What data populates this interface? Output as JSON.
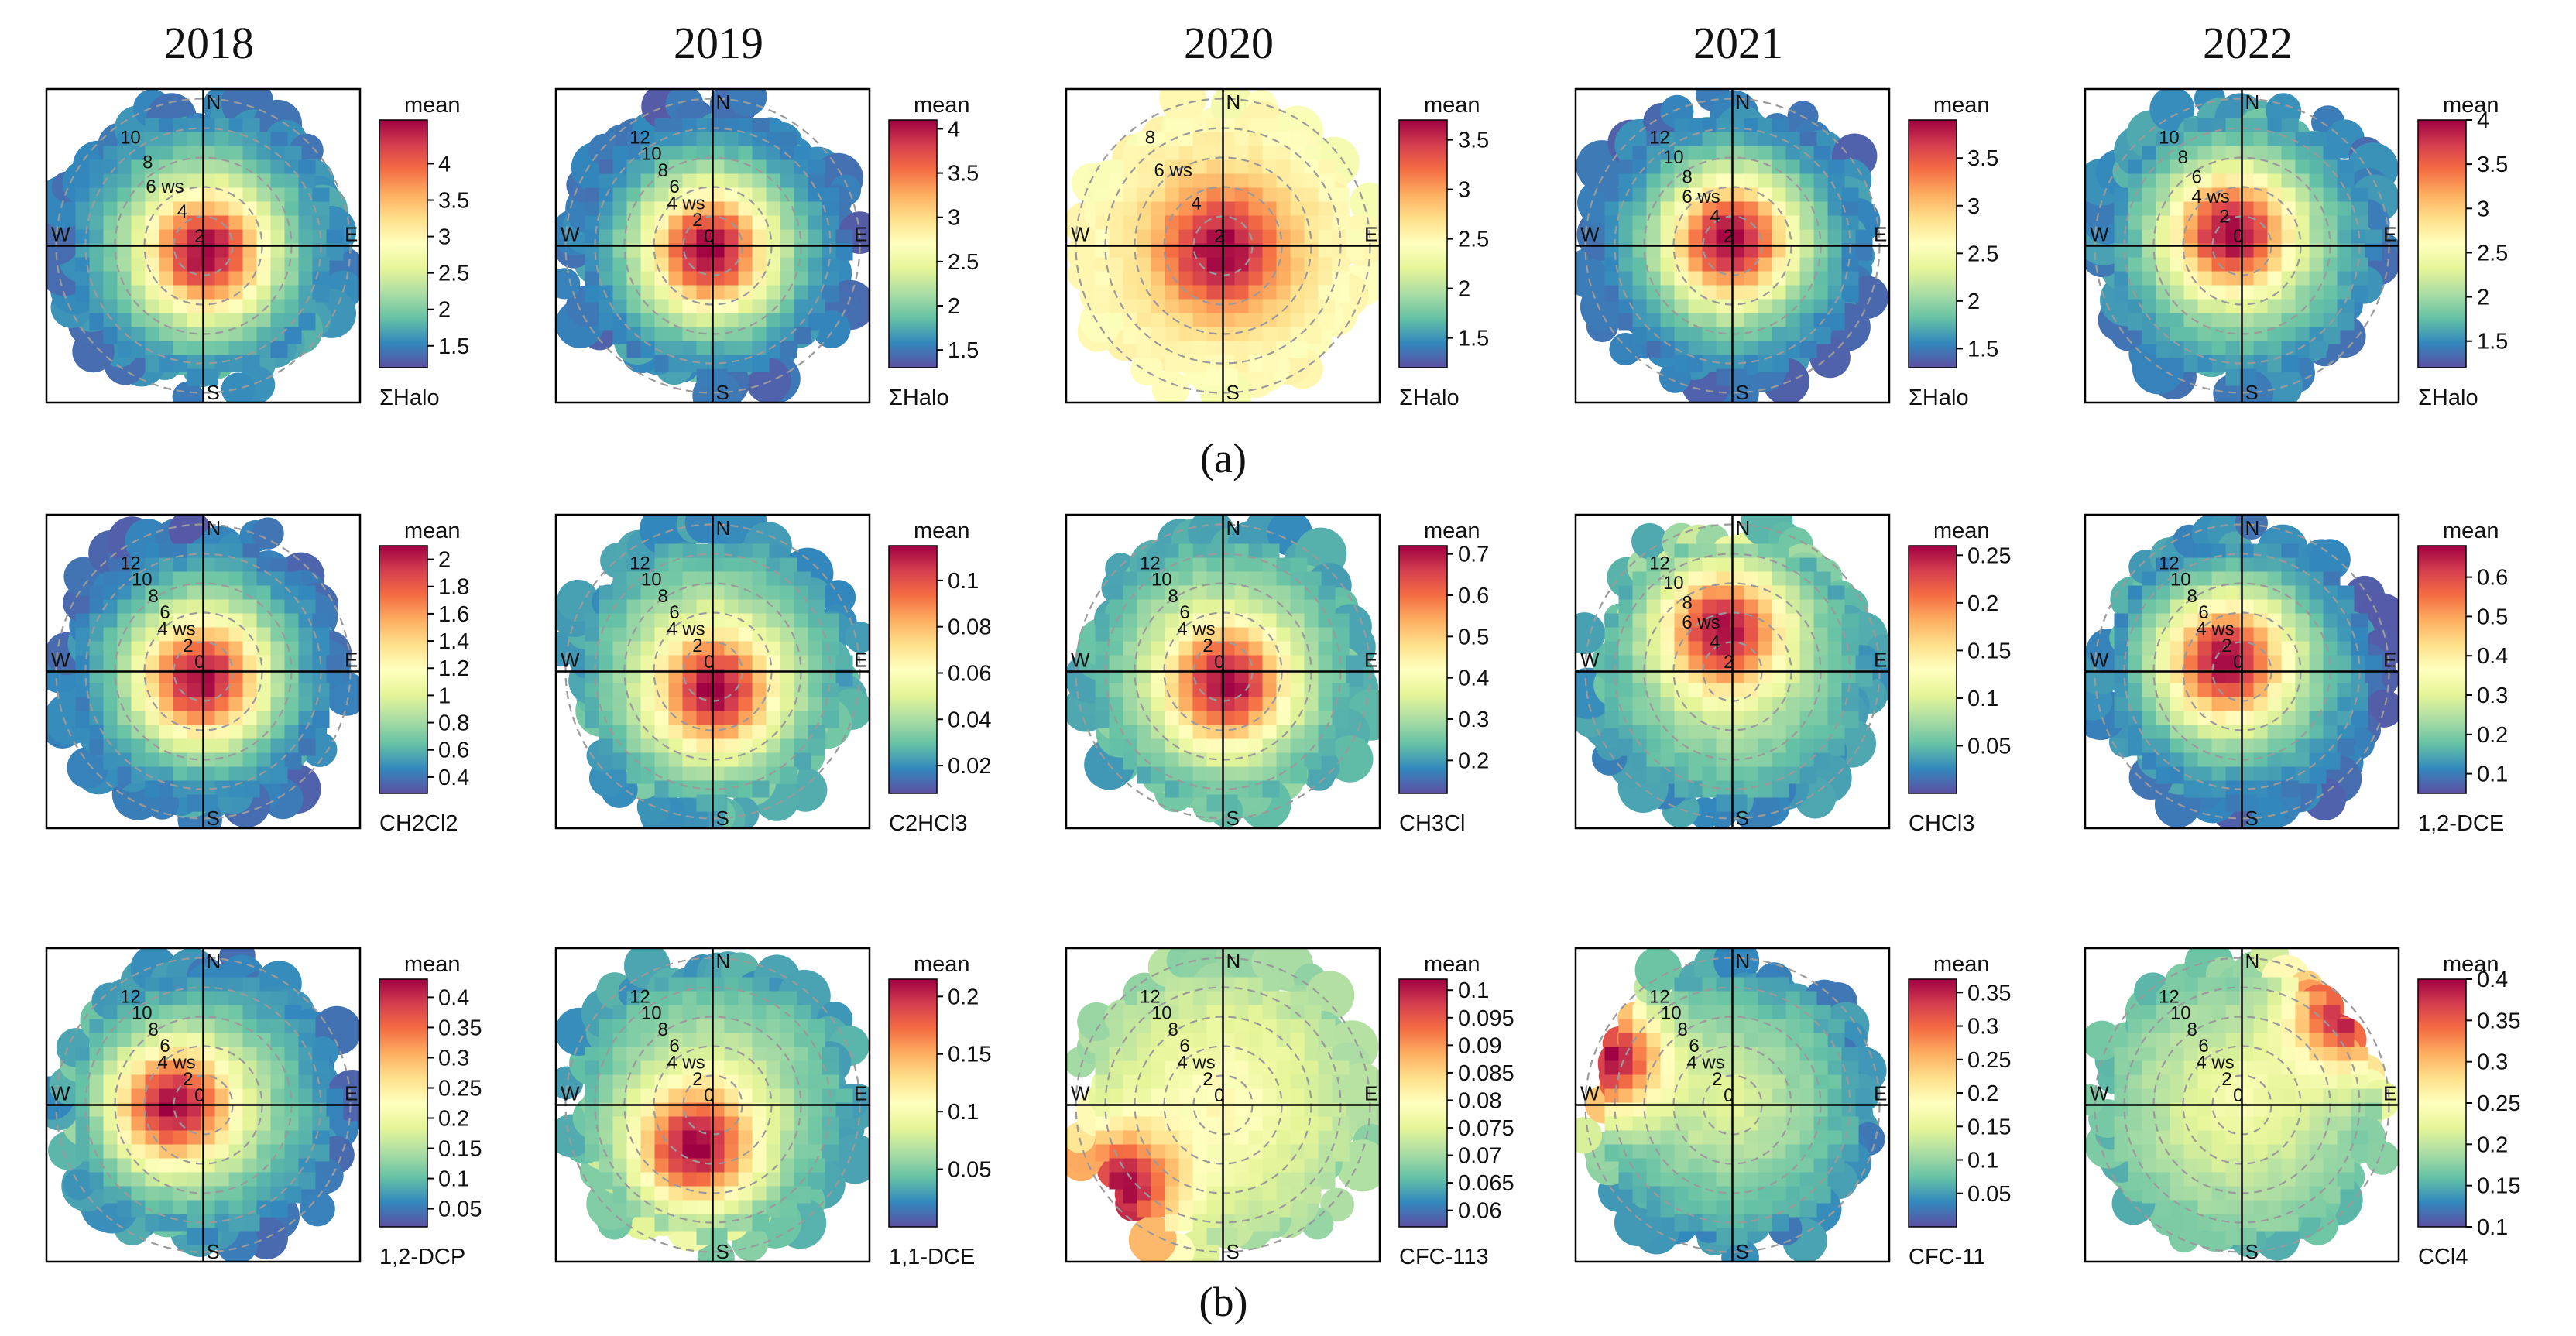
{
  "figure": {
    "years": [
      "2018",
      "2019",
      "2020",
      "2021",
      "2022"
    ],
    "panel_labels": [
      "(a)",
      "(b)"
    ]
  },
  "colors": {
    "scale": [
      "#5e4fa2",
      "#3288bd",
      "#66c2a5",
      "#abdda4",
      "#e6f598",
      "#ffffbf",
      "#fee08b",
      "#fdae61",
      "#f46d43",
      "#d53e4f",
      "#9e0142"
    ]
  },
  "chart_data": [
    {
      "type": "heatmap",
      "title": "2018",
      "compound": "ΣHalo",
      "legend_title": "mean",
      "ticks": [
        "1.5",
        "2",
        "2.5",
        "3",
        "3.5",
        "4"
      ],
      "tick_values": [
        1.5,
        2,
        2.5,
        3,
        3.5,
        4
      ],
      "range": [
        1.2,
        4.6
      ],
      "ring_labels": [
        "2",
        "4",
        "6 ws",
        "8",
        "10"
      ],
      "cardinals": [
        "N",
        "E",
        "S",
        "W"
      ],
      "hotspot": {
        "dir": 150,
        "ws": 0.8,
        "value": 4.6
      },
      "peripheral_value": 1.4
    },
    {
      "type": "heatmap",
      "title": "2019",
      "compound": "ΣHalo",
      "legend_title": "mean",
      "ticks": [
        "1.5",
        "2",
        "2.5",
        "3",
        "3.5",
        "4"
      ],
      "tick_values": [
        1.5,
        2,
        2.5,
        3,
        3.5,
        4
      ],
      "range": [
        1.3,
        4.1
      ],
      "ring_labels": [
        "0",
        "2",
        "4 ws",
        "6",
        "8",
        "10",
        "12"
      ],
      "cardinals": [
        "N",
        "E",
        "S",
        "W"
      ],
      "hotspot": {
        "dir": 200,
        "ws": 0.6,
        "value": 4.1
      },
      "peripheral_value": 1.4
    },
    {
      "type": "heatmap",
      "title": "2020",
      "compound": "ΣHalo",
      "legend_title": "mean",
      "ticks": [
        "1.5",
        "2",
        "2.5",
        "3",
        "3.5"
      ],
      "tick_values": [
        1.5,
        2,
        2.5,
        3,
        3.5
      ],
      "range": [
        1.2,
        3.7
      ],
      "ring_labels": [
        "2",
        "4",
        "6 ws",
        "8"
      ],
      "cardinals": [
        "N",
        "E",
        "S",
        "W"
      ],
      "hotspot": {
        "dir": 180,
        "ws": 0.6,
        "value": 3.7
      },
      "peripheral_value": 2.4
    },
    {
      "type": "heatmap",
      "title": "2021",
      "compound": "ΣHalo",
      "legend_title": "mean",
      "ticks": [
        "1.5",
        "2",
        "2.5",
        "3",
        "3.5"
      ],
      "tick_values": [
        1.5,
        2,
        2.5,
        3,
        3.5
      ],
      "range": [
        1.3,
        3.9
      ],
      "ring_labels": [
        "2",
        "4",
        "6 ws",
        "8",
        "10",
        "12"
      ],
      "cardinals": [
        "N",
        "E",
        "S",
        "W"
      ],
      "hotspot": {
        "dir": 0,
        "ws": 0.3,
        "value": 3.9
      },
      "peripheral_value": 1.4
    },
    {
      "type": "heatmap",
      "title": "2022",
      "compound": "ΣHalo",
      "legend_title": "mean",
      "ticks": [
        "1.5",
        "2",
        "2.5",
        "3",
        "3.5",
        "4"
      ],
      "tick_values": [
        1.5,
        2,
        2.5,
        3,
        3.5,
        4
      ],
      "range": [
        1.2,
        4.0
      ],
      "ring_labels": [
        "0",
        "2",
        "4 ws",
        "6",
        "8",
        "10"
      ],
      "cardinals": [
        "N",
        "E",
        "S",
        "W"
      ],
      "hotspot": {
        "dir": 320,
        "ws": 1.2,
        "value": 4.0
      },
      "peripheral_value": 1.4
    },
    {
      "type": "heatmap",
      "title": "2018",
      "compound": "CH2Cl2",
      "legend_title": "mean",
      "ticks": [
        "0.4",
        "0.6",
        "0.8",
        "1",
        "1.2",
        "1.4",
        "1.6",
        "1.8",
        "2"
      ],
      "tick_values": [
        0.4,
        0.6,
        0.8,
        1,
        1.2,
        1.4,
        1.6,
        1.8,
        2
      ],
      "range": [
        0.28,
        2.1
      ],
      "ring_labels": [
        "0",
        "2",
        "4 ws",
        "6",
        "8",
        "10",
        "12"
      ],
      "cardinals": [
        "N",
        "E",
        "S",
        "W"
      ],
      "hotspot": {
        "dir": 180,
        "ws": 0.8,
        "value": 2.1
      },
      "peripheral_value": 0.35
    },
    {
      "type": "heatmap",
      "title": "2019",
      "compound": "C2HCl3",
      "legend_title": "mean",
      "ticks": [
        "0.02",
        "0.04",
        "0.06",
        "0.08",
        "0.1"
      ],
      "tick_values": [
        0.02,
        0.04,
        0.06,
        0.08,
        0.1
      ],
      "range": [
        0.008,
        0.115
      ],
      "ring_labels": [
        "0",
        "2",
        "4 ws",
        "6",
        "8",
        "10",
        "12"
      ],
      "cardinals": [
        "N",
        "E",
        "S",
        "W"
      ],
      "hotspot": {
        "dir": 170,
        "ws": 1.8,
        "value": 0.115
      },
      "peripheral_value": 0.02
    },
    {
      "type": "heatmap",
      "title": "2020",
      "compound": "CH3Cl",
      "legend_title": "mean",
      "ticks": [
        "0.2",
        "0.3",
        "0.4",
        "0.5",
        "0.6",
        "0.7"
      ],
      "tick_values": [
        0.2,
        0.3,
        0.4,
        0.5,
        0.6,
        0.7
      ],
      "range": [
        0.12,
        0.72
      ],
      "ring_labels": [
        "0",
        "2",
        "4 ws",
        "6",
        "8",
        "10",
        "12"
      ],
      "cardinals": [
        "N",
        "E",
        "S",
        "W"
      ],
      "hotspot": {
        "dir": 160,
        "ws": 1.3,
        "value": 0.72
      },
      "peripheral_value": 0.2
    },
    {
      "type": "heatmap",
      "title": "2021",
      "compound": "CHCl3",
      "legend_title": "mean",
      "ticks": [
        "0.05",
        "0.1",
        "0.15",
        "0.2",
        "0.25"
      ],
      "tick_values": [
        0.05,
        0.1,
        0.15,
        0.2,
        0.25
      ],
      "range": [
        0.0,
        0.26
      ],
      "ring_labels": [
        "2",
        "4",
        "6 ws",
        "8",
        "10",
        "12"
      ],
      "cardinals": [
        "N",
        "E",
        "S",
        "W"
      ],
      "hotspot": {
        "dir": 350,
        "ws": 3.5,
        "value": 0.26
      },
      "peripheral_value": 0.03
    },
    {
      "type": "heatmap",
      "title": "2022",
      "compound": "1,2-DCE",
      "legend_title": "mean",
      "ticks": [
        "0.1",
        "0.2",
        "0.3",
        "0.4",
        "0.5",
        "0.6"
      ],
      "tick_values": [
        0.1,
        0.2,
        0.3,
        0.4,
        0.5,
        0.6
      ],
      "range": [
        0.05,
        0.68
      ],
      "ring_labels": [
        "0",
        "2",
        "4 ws",
        "6",
        "8",
        "10",
        "12"
      ],
      "cardinals": [
        "N",
        "E",
        "S",
        "W"
      ],
      "hotspot": {
        "dir": 300,
        "ws": 1.5,
        "value": 0.68
      },
      "peripheral_value": 0.08
    },
    {
      "type": "heatmap",
      "title": "2018",
      "compound": "1,2-DCP",
      "legend_title": "mean",
      "ticks": [
        "0.05",
        "0.1",
        "0.15",
        "0.2",
        "0.25",
        "0.3",
        "0.35",
        "0.4"
      ],
      "tick_values": [
        0.05,
        0.1,
        0.15,
        0.2,
        0.25,
        0.3,
        0.35,
        0.4
      ],
      "range": [
        0.02,
        0.43
      ],
      "ring_labels": [
        "0",
        "2",
        "4 ws",
        "6",
        "8",
        "10",
        "12"
      ],
      "cardinals": [
        "N",
        "E",
        "S",
        "W"
      ],
      "hotspot": {
        "dir": 265,
        "ws": 2.5,
        "value": 0.43
      },
      "peripheral_value": 0.05
    },
    {
      "type": "heatmap",
      "title": "2019",
      "compound": "1,1-DCE",
      "legend_title": "mean",
      "ticks": [
        "0.05",
        "0.1",
        "0.15",
        "0.2"
      ],
      "tick_values": [
        0.05,
        0.1,
        0.15,
        0.2
      ],
      "range": [
        0.0,
        0.215
      ],
      "ring_labels": [
        "0",
        "2",
        "4 ws",
        "6",
        "8",
        "10",
        "12"
      ],
      "cardinals": [
        "N",
        "E",
        "S",
        "W"
      ],
      "hotspot": {
        "dir": 200,
        "ws": 4.0,
        "value": 0.215
      },
      "peripheral_value": 0.03
    },
    {
      "type": "heatmap",
      "title": "2020",
      "compound": "CFC-113",
      "legend_title": "mean",
      "ticks": [
        "0.06",
        "0.065",
        "0.07",
        "0.075",
        "0.08",
        "0.085",
        "0.09",
        "0.095",
        "0.1"
      ],
      "tick_values": [
        0.06,
        0.065,
        0.07,
        0.075,
        0.08,
        0.085,
        0.09,
        0.095,
        0.1
      ],
      "range": [
        0.057,
        0.102
      ],
      "ring_labels": [
        "0",
        "2",
        "4 ws",
        "6",
        "8",
        "10",
        "12"
      ],
      "cardinals": [
        "N",
        "E",
        "S",
        "W"
      ],
      "hotspot": {
        "dir": 230,
        "ws": 11,
        "value": 0.102
      },
      "peripheral_value": 0.07
    },
    {
      "type": "heatmap",
      "title": "2021",
      "compound": "CFC-11",
      "legend_title": "mean",
      "ticks": [
        "0.05",
        "0.1",
        "0.15",
        "0.2",
        "0.25",
        "0.3",
        "0.35"
      ],
      "tick_values": [
        0.05,
        0.1,
        0.15,
        0.2,
        0.25,
        0.3,
        0.35
      ],
      "range": [
        0.0,
        0.37
      ],
      "ring_labels": [
        "0",
        "2",
        "4 ws",
        "6",
        "8",
        "10",
        "12"
      ],
      "cardinals": [
        "N",
        "E",
        "S",
        "W"
      ],
      "hotspot": {
        "dir": 290,
        "ws": 11,
        "value": 0.37
      },
      "peripheral_value": 0.04
    },
    {
      "type": "heatmap",
      "title": "2022",
      "compound": "CCl4",
      "legend_title": "mean",
      "ticks": [
        "0.1",
        "0.15",
        "0.2",
        "0.25",
        "0.3",
        "0.35",
        "0.4"
      ],
      "tick_values": [
        0.1,
        0.15,
        0.2,
        0.25,
        0.3,
        0.35,
        0.4
      ],
      "range": [
        0.1,
        0.4
      ],
      "ring_labels": [
        "0",
        "2",
        "4 ws",
        "6",
        "8",
        "10",
        "12"
      ],
      "cardinals": [
        "N",
        "E",
        "S",
        "W"
      ],
      "hotspot": {
        "dir": 50,
        "ws": 12,
        "value": 0.4
      },
      "peripheral_value": 0.16
    }
  ]
}
